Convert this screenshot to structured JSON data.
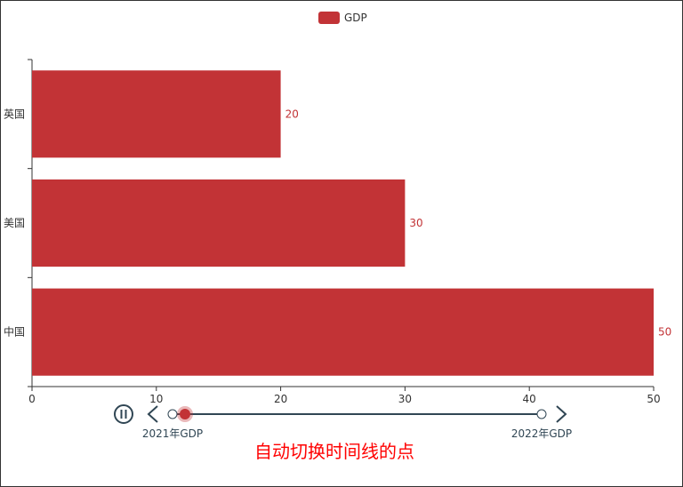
{
  "colors": {
    "bar": "#c23336",
    "axis": "#333333",
    "timeline": "#304654",
    "subtitle": "#ff0000",
    "frame_border": "#333333"
  },
  "legend": {
    "label": "GDP",
    "icon": "legend-rect-icon"
  },
  "chart_data": {
    "type": "bar",
    "orientation": "horizontal",
    "categories": [
      "中国",
      "美国",
      "英国"
    ],
    "series": [
      {
        "name": "GDP",
        "values": [
          50,
          30,
          20
        ]
      }
    ],
    "xlim": [
      0,
      50
    ],
    "x_ticks": [
      {
        "label": "0",
        "value": 0
      },
      {
        "label": "10",
        "value": 10
      },
      {
        "label": "20",
        "value": 20
      },
      {
        "label": "30",
        "value": 30
      },
      {
        "label": "40",
        "value": 40
      },
      {
        "label": "50",
        "value": 50
      }
    ],
    "grid": false,
    "legend_placement": "top-center",
    "show_data_labels": true
  },
  "timeline": {
    "items": [
      "2021年GDP",
      "2022年GDP"
    ],
    "active_index": 0,
    "playing": true,
    "play_icon": "pause-icon",
    "prev_icon": "chevron-left-icon",
    "next_icon": "chevron-right-icon"
  },
  "subtitle": "自动切换时间线的点"
}
